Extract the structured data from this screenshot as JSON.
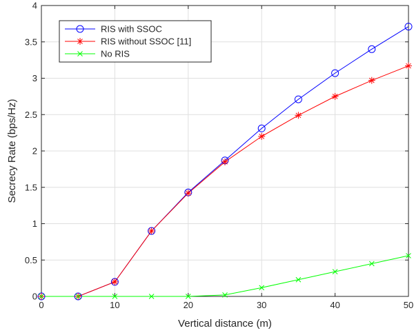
{
  "chart_data": {
    "type": "line",
    "title": "",
    "xlabel": "Vertical distance (m)",
    "ylabel": "Secrecy Rate (bps/Hz)",
    "xlim": [
      0,
      50
    ],
    "ylim": [
      0,
      4
    ],
    "x_ticks": [
      0,
      10,
      20,
      30,
      40,
      50
    ],
    "y_ticks": [
      0,
      0.5,
      1,
      1.5,
      2,
      2.5,
      3,
      3.5,
      4
    ],
    "grid": true,
    "legend_position": "top-left",
    "x": [
      0,
      5,
      10,
      15,
      20,
      25,
      30,
      35,
      40,
      45,
      50
    ],
    "series": [
      {
        "name": "RIS with SSOC",
        "color": "#0000ff",
        "marker": "circle",
        "values": [
          0,
          0,
          0.2,
          0.9,
          1.43,
          1.87,
          2.31,
          2.71,
          3.07,
          3.4,
          3.71
        ]
      },
      {
        "name": "RIS without SSOC [11]",
        "color": "#ff0000",
        "marker": "asterisk",
        "values": [
          0,
          0,
          0.2,
          0.9,
          1.42,
          1.85,
          2.2,
          2.49,
          2.75,
          2.97,
          3.17
        ]
      },
      {
        "name": "No RIS",
        "color": "#00ff00",
        "marker": "x",
        "values": [
          0,
          0,
          0,
          0,
          0,
          0.02,
          0.12,
          0.23,
          0.34,
          0.45,
          0.56
        ]
      }
    ]
  }
}
